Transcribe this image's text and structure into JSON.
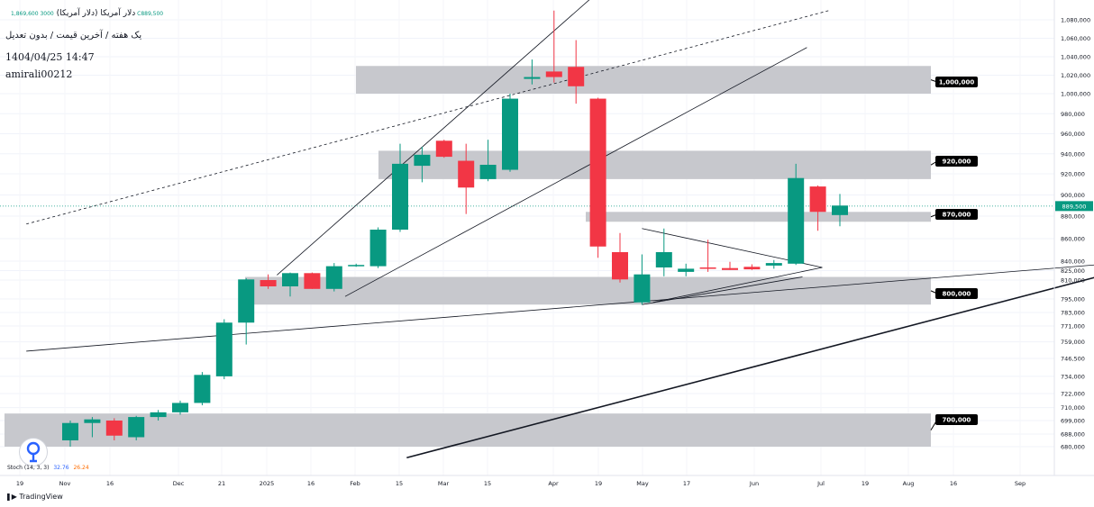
{
  "header": {
    "symbol": "دلار آمریکا (دلار آمریکا)",
    "ohlc": "3000 1,869,600 C889,500",
    "subtitle": "یک هفته / آخرین قیمت / بدون تعدیل",
    "datetime": "1404/04/25 14:47",
    "author": "amirali00212"
  },
  "indicator": {
    "name": "Stoch (14, 3, 3)",
    "k_value": "32.76",
    "d_value": "26.24"
  },
  "brand": "TradingView",
  "colors": {
    "up": "#089981",
    "down": "#f23645",
    "zone": "#c4c5ca",
    "label_bg": "#000000",
    "last_price_bg": "#089981"
  },
  "chart_data": {
    "type": "candlestick",
    "timeframe": "1W",
    "x_tick_labels": [
      "19",
      "Nov",
      "16",
      "Dec",
      "21",
      "2025",
      "16",
      "Feb",
      "15",
      "Mar",
      "15",
      "Apr",
      "19",
      "May",
      "17",
      "Jun",
      "Jul",
      "19",
      "Aug",
      "16",
      "Sep"
    ],
    "y_tick_labels": [
      "1,080,000",
      "1,060,000",
      "1,040,000",
      "1,020,000",
      "1,000,000",
      "980,000",
      "960,000",
      "940,000",
      "920,000",
      "900,000",
      "880,000",
      "860,000",
      "840,000",
      "825,000",
      "810,000",
      "795,000",
      "783,000",
      "771,000",
      "759,000",
      "746,500",
      "734,000",
      "722,000",
      "710,000",
      "699,000",
      "688,000",
      "680,000"
    ],
    "last_price": 889500,
    "last_price_label": "889,500",
    "zones": [
      {
        "label": "1,000,000",
        "low": 1000000,
        "high": 1030000
      },
      {
        "label": "920,000",
        "low": 915000,
        "high": 943000
      },
      {
        "label": "870,000",
        "low": 875000,
        "high": 884000
      },
      {
        "label": "800,000",
        "low": 790000,
        "high": 815000
      },
      {
        "label": "700,000",
        "low": 680000,
        "high": 705000
      }
    ],
    "candles": [
      {
        "o": 684000,
        "h": 699000,
        "l": 680000,
        "c": 697000
      },
      {
        "o": 697000,
        "h": 702000,
        "l": 686000,
        "c": 700000
      },
      {
        "o": 699000,
        "h": 701000,
        "l": 684000,
        "c": 687000
      },
      {
        "o": 686000,
        "h": 703000,
        "l": 684000,
        "c": 702000
      },
      {
        "o": 702000,
        "h": 708000,
        "l": 699000,
        "c": 706000
      },
      {
        "o": 706000,
        "h": 716000,
        "l": 704000,
        "c": 714000
      },
      {
        "o": 714000,
        "h": 737000,
        "l": 712000,
        "c": 735000
      },
      {
        "o": 734000,
        "h": 777000,
        "l": 732000,
        "c": 774000
      },
      {
        "o": 774000,
        "h": 813000,
        "l": 757000,
        "c": 811000
      },
      {
        "o": 810000,
        "h": 819000,
        "l": 803000,
        "c": 805000
      },
      {
        "o": 805000,
        "h": 822000,
        "l": 797000,
        "c": 821000
      },
      {
        "o": 821000,
        "h": 822000,
        "l": 803000,
        "c": 803000
      },
      {
        "o": 803000,
        "h": 837000,
        "l": 801000,
        "c": 832000
      },
      {
        "o": 832000,
        "h": 836000,
        "l": 831000,
        "c": 834000
      },
      {
        "o": 832000,
        "h": 870000,
        "l": 829000,
        "c": 868000
      },
      {
        "o": 868000,
        "h": 950000,
        "l": 866000,
        "c": 930000
      },
      {
        "o": 928000,
        "h": 947000,
        "l": 912000,
        "c": 939000
      },
      {
        "o": 953000,
        "h": 954000,
        "l": 936000,
        "c": 937000
      },
      {
        "o": 933000,
        "h": 950000,
        "l": 882000,
        "c": 907000
      },
      {
        "o": 915000,
        "h": 954000,
        "l": 913000,
        "c": 929000
      },
      {
        "o": 924000,
        "h": 1000000,
        "l": 922000,
        "c": 995000
      },
      {
        "o": 1016000,
        "h": 1037000,
        "l": 1010000,
        "c": 1018000
      },
      {
        "o": 1024000,
        "h": 1090000,
        "l": 1012000,
        "c": 1018000
      },
      {
        "o": 1029000,
        "h": 1058000,
        "l": 990000,
        "c": 1008000
      },
      {
        "o": 995000,
        "h": 996000,
        "l": 843000,
        "c": 853000
      },
      {
        "o": 848000,
        "h": 865000,
        "l": 808000,
        "c": 811000
      },
      {
        "o": 792000,
        "h": 846000,
        "l": 790000,
        "c": 819000
      },
      {
        "o": 830000,
        "h": 869000,
        "l": 816000,
        "c": 848000
      },
      {
        "o": 823000,
        "h": 836000,
        "l": 816000,
        "c": 828000
      },
      {
        "o": 830000,
        "h": 859000,
        "l": 823000,
        "c": 828000
      },
      {
        "o": 829000,
        "h": 839000,
        "l": 826000,
        "c": 826000
      },
      {
        "o": 831000,
        "h": 835000,
        "l": 826000,
        "c": 827000
      },
      {
        "o": 833000,
        "h": 841000,
        "l": 828000,
        "c": 837000
      },
      {
        "o": 836000,
        "h": 930000,
        "l": 834000,
        "c": 916000
      },
      {
        "o": 908000,
        "h": 909000,
        "l": 867000,
        "c": 884000
      },
      {
        "o": 881000,
        "h": 901000,
        "l": 871000,
        "c": 890000
      }
    ],
    "trendlines": [
      {
        "style": "solid",
        "from": {
          "i": 9.4,
          "v": 818000
        },
        "to": {
          "i": 24.0,
          "v": 1110000
        }
      },
      {
        "style": "solid",
        "from": {
          "i": 12.5,
          "v": 797000
        },
        "to": {
          "i": 33.5,
          "v": 1050000
        }
      },
      {
        "style": "dashed",
        "from": {
          "i": -2.0,
          "v": 873000
        },
        "to": {
          "i": 34.5,
          "v": 1090000
        }
      },
      {
        "style": "solid",
        "from": {
          "i": -2.0,
          "v": 752000
        },
        "to": {
          "i": 48.0,
          "v": 838000
        }
      },
      {
        "style": "solid_bold",
        "from": {
          "i": 15.3,
          "v": 673000
        },
        "to": {
          "i": 48.0,
          "v": 827000
        }
      },
      {
        "style": "solid",
        "from": {
          "i": 26.0,
          "v": 869000
        },
        "to": {
          "i": 34.2,
          "v": 830000
        }
      },
      {
        "style": "solid",
        "from": {
          "i": 26.5,
          "v": 792000
        },
        "to": {
          "i": 34.2,
          "v": 830000
        }
      },
      {
        "style": "solid",
        "from": {
          "i": 26.0,
          "v": 790000
        },
        "to": {
          "i": 33.3,
          "v": 815000
        }
      }
    ]
  }
}
